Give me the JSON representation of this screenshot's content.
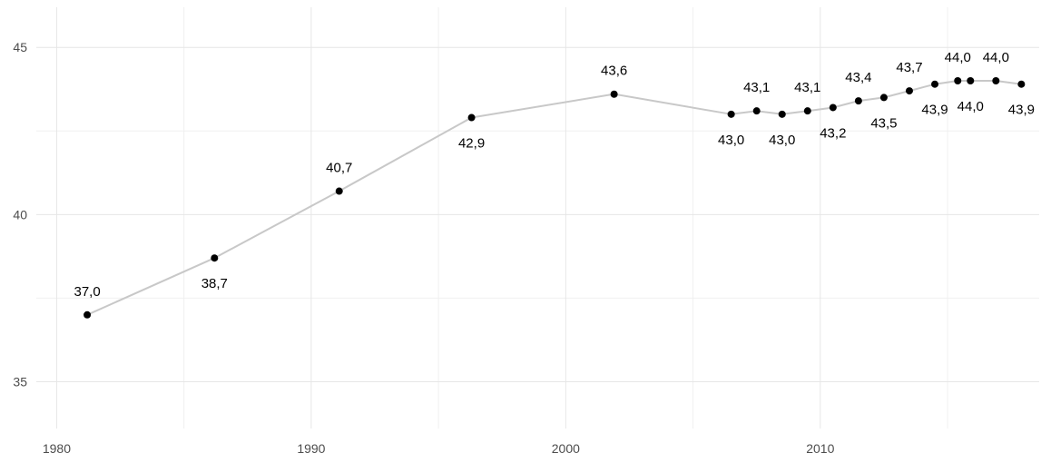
{
  "chart_data": {
    "type": "line",
    "title": "",
    "xlabel": "",
    "ylabel": "",
    "xlim": [
      1979.2,
      2018.6
    ],
    "ylim": [
      33.6,
      46.2
    ],
    "grid": true,
    "x_ticks": [
      1980,
      1990,
      2000,
      2010
    ],
    "y_ticks": [
      35,
      40,
      45
    ],
    "x_minor_ticks": [
      1985,
      1995,
      2005,
      2015
    ],
    "y_minor_ticks": [
      37.5,
      42.5
    ],
    "colors": {
      "line": "#c8c8c8",
      "point": "#000000",
      "grid": "#e6e6e6",
      "grid_minor": "#f0f0f0",
      "tick_text": "#4d4d4d"
    },
    "series": [
      {
        "points": [
          {
            "x": 1981.2,
            "y": 37.0,
            "label": "37,0",
            "label_pos": "above"
          },
          {
            "x": 1986.2,
            "y": 38.7,
            "label": "38,7",
            "label_pos": "below"
          },
          {
            "x": 1991.1,
            "y": 40.7,
            "label": "40,7",
            "label_pos": "above"
          },
          {
            "x": 1996.3,
            "y": 42.9,
            "label": "42,9",
            "label_pos": "below"
          },
          {
            "x": 2001.9,
            "y": 43.6,
            "label": "43,6",
            "label_pos": "above"
          },
          {
            "x": 2006.5,
            "y": 43.0,
            "label": "43,0",
            "label_pos": "below"
          },
          {
            "x": 2007.5,
            "y": 43.1,
            "label": "43,1",
            "label_pos": "above"
          },
          {
            "x": 2008.5,
            "y": 43.0,
            "label": "43,0",
            "label_pos": "below"
          },
          {
            "x": 2009.5,
            "y": 43.1,
            "label": "43,1",
            "label_pos": "above"
          },
          {
            "x": 2010.5,
            "y": 43.2,
            "label": "43,2",
            "label_pos": "below"
          },
          {
            "x": 2011.5,
            "y": 43.4,
            "label": "43,4",
            "label_pos": "above"
          },
          {
            "x": 2012.5,
            "y": 43.5,
            "label": "43,5",
            "label_pos": "below"
          },
          {
            "x": 2013.5,
            "y": 43.7,
            "label": "43,7",
            "label_pos": "above"
          },
          {
            "x": 2014.5,
            "y": 43.9,
            "label": "43,9",
            "label_pos": "below"
          },
          {
            "x": 2015.4,
            "y": 44.0,
            "label": "44,0",
            "label_pos": "above"
          },
          {
            "x": 2015.9,
            "y": 44.0,
            "label": "44,0",
            "label_pos": "below"
          },
          {
            "x": 2016.9,
            "y": 44.0,
            "label": "44,0",
            "label_pos": "above"
          },
          {
            "x": 2017.9,
            "y": 43.9,
            "label": "43,9",
            "label_pos": "below"
          }
        ]
      }
    ]
  }
}
